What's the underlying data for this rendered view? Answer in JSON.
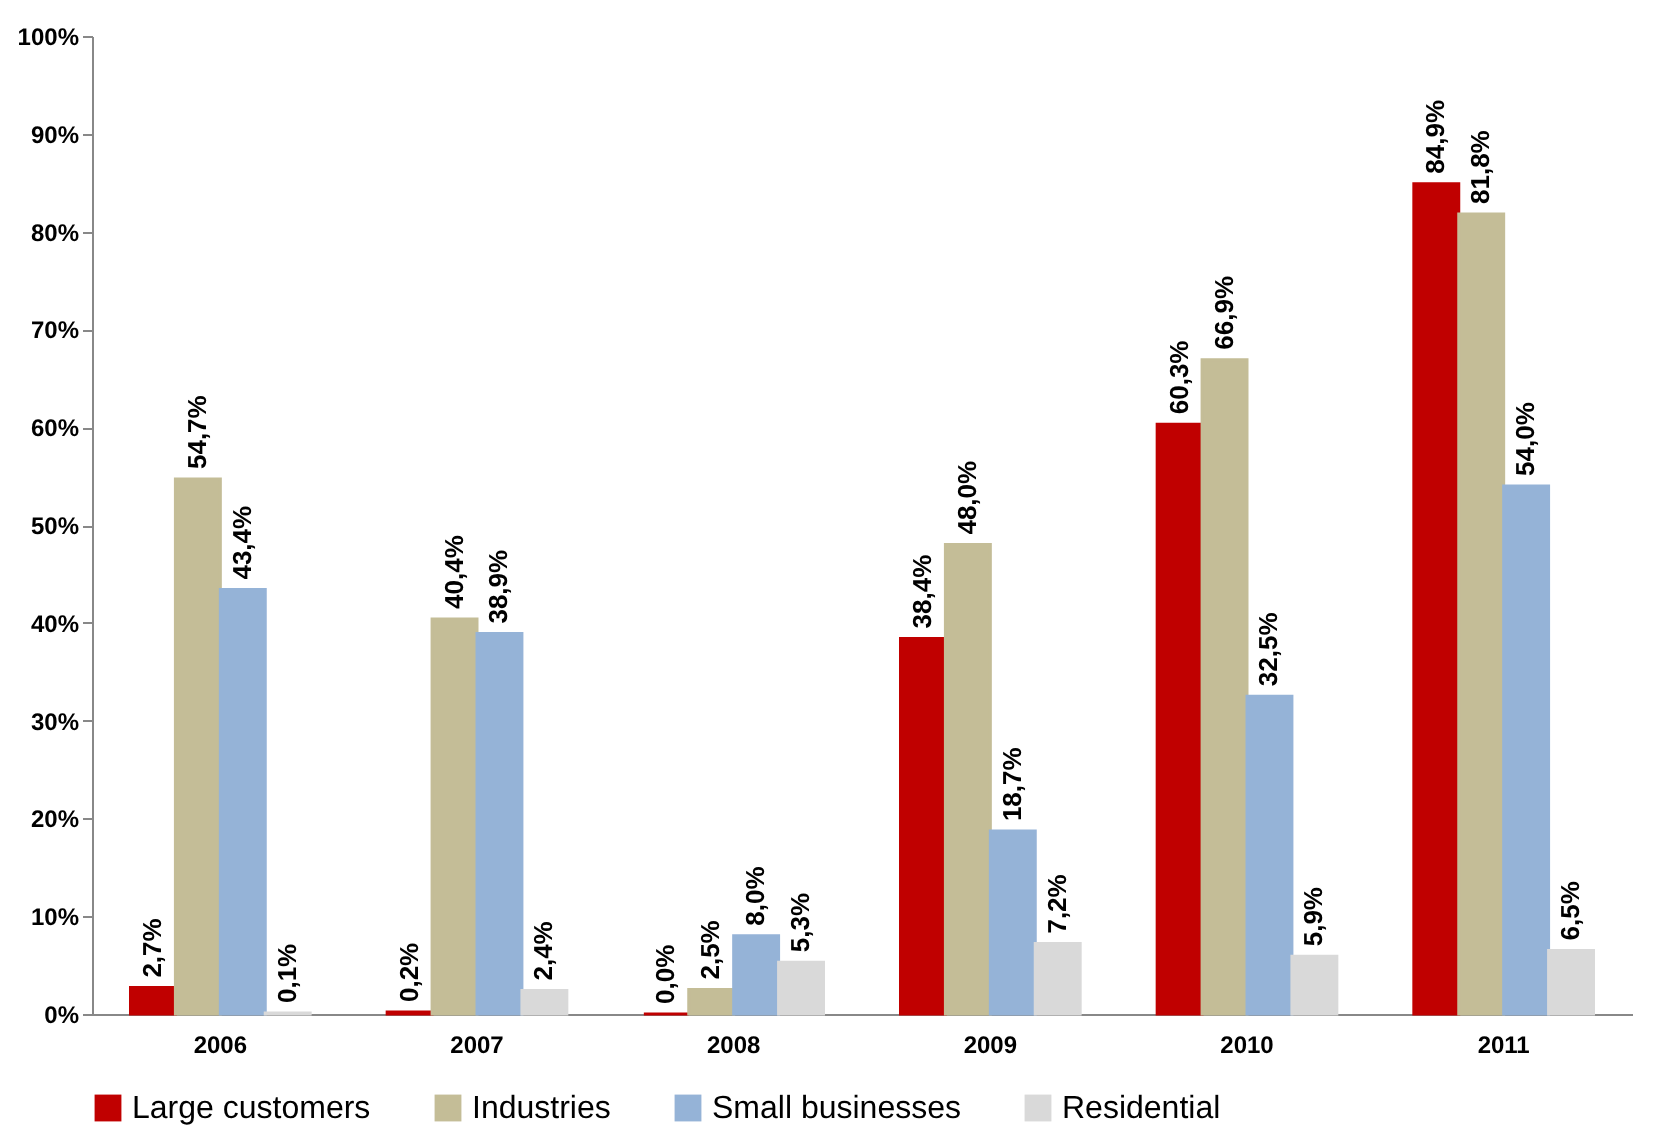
{
  "chart_data": {
    "type": "bar",
    "categories": [
      "2006",
      "2007",
      "2008",
      "2009",
      "2010",
      "2011"
    ],
    "series": [
      {
        "name": "Large customers",
        "color": "#c00000",
        "values": [
          2.7,
          0.2,
          0.0,
          38.4,
          60.3,
          84.9
        ],
        "value_labels": [
          "2,7%",
          "0,2%",
          "0,0%",
          "38,4%",
          "60,3%",
          "84,9%"
        ]
      },
      {
        "name": "Industries",
        "color": "#c4bd97",
        "values": [
          54.7,
          40.4,
          2.5,
          48.0,
          66.9,
          81.8
        ],
        "value_labels": [
          "54,7%",
          "40,4%",
          "2,5%",
          "48,0%",
          "66,9%",
          "81,8%"
        ]
      },
      {
        "name": "Small businesses",
        "color": "#95b3d7",
        "values": [
          43.4,
          38.9,
          8.0,
          18.7,
          32.5,
          54.0
        ],
        "value_labels": [
          "43,4%",
          "38,9%",
          "8,0%",
          "18,7%",
          "32,5%",
          "54,0%"
        ]
      },
      {
        "name": "Residential",
        "color": "#d9d9d9",
        "values": [
          0.1,
          2.4,
          5.3,
          7.2,
          5.9,
          6.5
        ],
        "value_labels": [
          "0,1%",
          "2,4%",
          "5,3%",
          "7,2%",
          "5,9%",
          "6,5%"
        ]
      }
    ],
    "ylim": [
      0,
      100
    ],
    "yticks": [
      {
        "value": 0,
        "label": "0%"
      },
      {
        "value": 10,
        "label": "10%"
      },
      {
        "value": 20,
        "label": "20%"
      },
      {
        "value": 30,
        "label": "30%"
      },
      {
        "value": 40,
        "label": "40%"
      },
      {
        "value": 50,
        "label": "50%"
      },
      {
        "value": 60,
        "label": "60%"
      },
      {
        "value": 70,
        "label": "70%"
      },
      {
        "value": 80,
        "label": "80%"
      },
      {
        "value": 90,
        "label": "90%"
      },
      {
        "value": 100,
        "label": "100%"
      }
    ],
    "grid": false,
    "legend": "bottom"
  }
}
